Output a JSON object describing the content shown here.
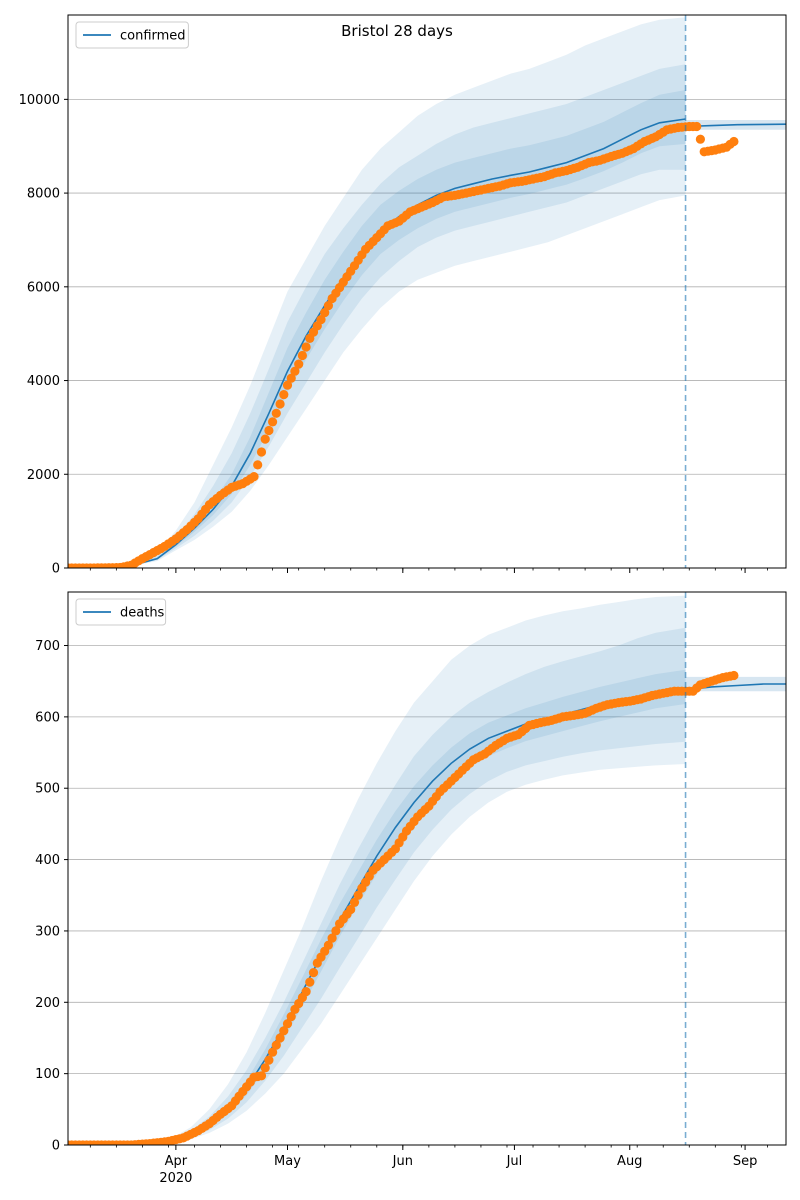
{
  "figure": {
    "title": "Bristol 28 days",
    "xaxis": {
      "type": "date",
      "range": [
        "2020-03-03",
        "2020-09-12"
      ],
      "major_ticks": [
        {
          "date": "2020-04-01",
          "label": "Apr",
          "sublabel": "2020"
        },
        {
          "date": "2020-05-01",
          "label": "May",
          "sublabel": ""
        },
        {
          "date": "2020-06-01",
          "label": "Jun",
          "sublabel": ""
        },
        {
          "date": "2020-07-01",
          "label": "Jul",
          "sublabel": ""
        },
        {
          "date": "2020-08-01",
          "label": "Aug",
          "sublabel": ""
        },
        {
          "date": "2020-09-01",
          "label": "Sep",
          "sublabel": ""
        }
      ],
      "minor_tick_interval": "weekly",
      "forecast_start": "2020-08-16"
    },
    "colors": {
      "model_line": "#1f77b4",
      "observed_points": "#ff7f0e",
      "bands": "#1f77b4",
      "grid": "#b0b0b0",
      "forecast_line": "#1f77b4"
    }
  },
  "chart_data": [
    {
      "type": "line",
      "legend": {
        "label": "confirmed",
        "position": "top-left"
      },
      "ylim": [
        0,
        11800
      ],
      "yticks": [
        0,
        2000,
        4000,
        6000,
        8000,
        10000
      ],
      "grid": "y",
      "model_median": {
        "x": [
          "2020-03-03",
          "2020-03-20",
          "2020-03-27",
          "2020-04-01",
          "2020-04-06",
          "2020-04-11",
          "2020-04-16",
          "2020-04-21",
          "2020-04-26",
          "2020-05-01",
          "2020-05-06",
          "2020-05-11",
          "2020-05-16",
          "2020-05-21",
          "2020-05-26",
          "2020-05-31",
          "2020-06-05",
          "2020-06-10",
          "2020-06-15",
          "2020-06-20",
          "2020-06-25",
          "2020-06-30",
          "2020-07-05",
          "2020-07-10",
          "2020-07-15",
          "2020-07-20",
          "2020-07-25",
          "2020-07-30",
          "2020-08-04",
          "2020-08-09",
          "2020-08-16"
        ],
        "y": [
          0,
          50,
          200,
          500,
          850,
          1250,
          1750,
          2450,
          3300,
          4200,
          4950,
          5600,
          6200,
          6750,
          7200,
          7500,
          7750,
          7950,
          8100,
          8200,
          8300,
          8380,
          8450,
          8550,
          8650,
          8800,
          8950,
          9150,
          9350,
          9500,
          9580
        ]
      },
      "model_future": {
        "x": [
          "2020-08-16",
          "2020-08-23",
          "2020-08-30",
          "2020-09-06",
          "2020-09-12"
        ],
        "y": [
          9420,
          9440,
          9460,
          9465,
          9470
        ],
        "band": [
          9350,
          9560
        ]
      },
      "bands": [
        {
          "name": "95%",
          "lower": [
            0,
            40,
            150,
            380,
            600,
            880,
            1200,
            1650,
            2200,
            2800,
            3400,
            4000,
            4600,
            5100,
            5550,
            5900,
            6150,
            6300,
            6450,
            6550,
            6650,
            6750,
            6850,
            6950,
            7100,
            7250,
            7400,
            7550,
            7700,
            7850,
            7950
          ],
          "upper": [
            0,
            80,
            330,
            800,
            1400,
            2200,
            3000,
            3900,
            4900,
            5900,
            6600,
            7300,
            7900,
            8500,
            8950,
            9300,
            9650,
            9900,
            10100,
            10250,
            10400,
            10550,
            10650,
            10800,
            10950,
            11150,
            11300,
            11450,
            11600,
            11700,
            11750
          ]
        },
        {
          "name": "80%",
          "lower": [
            0,
            45,
            170,
            420,
            690,
            1010,
            1400,
            1950,
            2600,
            3300,
            3950,
            4600,
            5200,
            5750,
            6200,
            6550,
            6850,
            7050,
            7200,
            7300,
            7400,
            7500,
            7600,
            7700,
            7800,
            7950,
            8100,
            8250,
            8400,
            8500,
            8500
          ],
          "upper": [
            0,
            70,
            270,
            650,
            1150,
            1750,
            2450,
            3300,
            4250,
            5250,
            6000,
            6700,
            7250,
            7750,
            8200,
            8550,
            8800,
            9050,
            9250,
            9400,
            9500,
            9600,
            9700,
            9800,
            9900,
            10050,
            10200,
            10350,
            10500,
            10650,
            10750
          ]
        },
        {
          "name": "50%",
          "lower": [
            0,
            48,
            185,
            460,
            770,
            1130,
            1580,
            2200,
            2950,
            3750,
            4450,
            5100,
            5700,
            6250,
            6700,
            7000,
            7250,
            7450,
            7600,
            7700,
            7800,
            7900,
            7980,
            8080,
            8180,
            8320,
            8470,
            8650,
            8850,
            9000,
            9050
          ],
          "upper": [
            0,
            58,
            230,
            560,
            960,
            1420,
            2000,
            2800,
            3750,
            4700,
            5450,
            6150,
            6750,
            7300,
            7750,
            8050,
            8300,
            8500,
            8650,
            8750,
            8850,
            8950,
            9020,
            9120,
            9220,
            9370,
            9520,
            9720,
            9920,
            10100,
            10200
          ]
        }
      ],
      "observed": {
        "x": [
          "2020-03-03",
          "2020-03-10",
          "2020-03-17",
          "2020-03-20",
          "2020-03-23",
          "2020-03-26",
          "2020-03-29",
          "2020-04-01",
          "2020-04-04",
          "2020-04-07",
          "2020-04-10",
          "2020-04-13",
          "2020-04-16",
          "2020-04-19",
          "2020-04-22",
          "2020-04-23",
          "2020-04-25",
          "2020-04-28",
          "2020-05-01",
          "2020-05-04",
          "2020-05-07",
          "2020-05-10",
          "2020-05-13",
          "2020-05-16",
          "2020-05-19",
          "2020-05-22",
          "2020-05-25",
          "2020-05-28",
          "2020-05-31",
          "2020-06-03",
          "2020-06-06",
          "2020-06-09",
          "2020-06-12",
          "2020-06-15",
          "2020-06-18",
          "2020-06-21",
          "2020-06-24",
          "2020-06-27",
          "2020-06-30",
          "2020-07-03",
          "2020-07-06",
          "2020-07-09",
          "2020-07-12",
          "2020-07-15",
          "2020-07-18",
          "2020-07-21",
          "2020-07-24",
          "2020-07-27",
          "2020-07-30",
          "2020-08-02",
          "2020-08-05",
          "2020-08-08",
          "2020-08-11",
          "2020-08-14",
          "2020-08-17",
          "2020-08-19",
          "2020-08-21",
          "2020-08-24",
          "2020-08-27",
          "2020-08-29"
        ],
        "y": [
          0,
          0,
          10,
          60,
          200,
          330,
          460,
          620,
          820,
          1050,
          1350,
          1550,
          1720,
          1800,
          1950,
          2200,
          2750,
          3300,
          3900,
          4350,
          4900,
          5300,
          5750,
          6100,
          6450,
          6800,
          7050,
          7300,
          7400,
          7600,
          7700,
          7800,
          7920,
          7950,
          8000,
          8050,
          8100,
          8150,
          8220,
          8250,
          8300,
          8350,
          8430,
          8480,
          8550,
          8650,
          8700,
          8780,
          8850,
          8950,
          9100,
          9200,
          9350,
          9400,
          9420,
          9420,
          8880,
          8920,
          8980,
          9100
        ]
      }
    },
    {
      "type": "line",
      "legend": {
        "label": "deaths",
        "position": "top-left"
      },
      "ylim": [
        0,
        775
      ],
      "yticks": [
        0,
        100,
        200,
        300,
        400,
        500,
        600,
        700
      ],
      "grid": "y",
      "model_median": {
        "x": [
          "2020-03-03",
          "2020-03-25",
          "2020-03-31",
          "2020-04-05",
          "2020-04-10",
          "2020-04-15",
          "2020-04-20",
          "2020-04-25",
          "2020-04-30",
          "2020-05-05",
          "2020-05-10",
          "2020-05-15",
          "2020-05-20",
          "2020-05-25",
          "2020-05-30",
          "2020-06-04",
          "2020-06-09",
          "2020-06-14",
          "2020-06-19",
          "2020-06-24",
          "2020-06-29",
          "2020-07-04",
          "2020-07-09",
          "2020-07-14",
          "2020-07-19",
          "2020-07-24",
          "2020-07-29",
          "2020-08-03",
          "2020-08-08",
          "2020-08-16"
        ],
        "y": [
          0,
          2,
          6,
          15,
          30,
          50,
          80,
          120,
          165,
          215,
          265,
          315,
          360,
          405,
          445,
          480,
          510,
          535,
          555,
          570,
          580,
          590,
          597,
          603,
          610,
          617,
          623,
          628,
          633,
          638
        ]
      },
      "model_future": {
        "x": [
          "2020-08-16",
          "2020-08-23",
          "2020-08-30",
          "2020-09-06",
          "2020-09-12"
        ],
        "y": [
          638,
          642,
          644,
          646,
          646
        ],
        "band": [
          636,
          656
        ]
      },
      "bands": [
        {
          "name": "95%",
          "lower": [
            0,
            1,
            3,
            8,
            17,
            30,
            48,
            72,
            100,
            135,
            170,
            210,
            250,
            290,
            330,
            370,
            405,
            435,
            460,
            480,
            495,
            505,
            512,
            518,
            522,
            526,
            528,
            530,
            532,
            534
          ],
          "upper": [
            0,
            3,
            10,
            25,
            50,
            85,
            130,
            185,
            245,
            305,
            370,
            430,
            485,
            535,
            580,
            620,
            650,
            680,
            700,
            715,
            725,
            735,
            742,
            748,
            752,
            757,
            761,
            765,
            768,
            770
          ]
        },
        {
          "name": "80%",
          "lower": [
            0,
            1,
            4,
            10,
            21,
            37,
            60,
            90,
            125,
            165,
            205,
            248,
            290,
            333,
            372,
            410,
            442,
            470,
            492,
            510,
            523,
            532,
            538,
            544,
            549,
            553,
            556,
            559,
            562,
            565
          ],
          "upper": [
            0,
            2,
            8,
            20,
            40,
            68,
            105,
            150,
            200,
            255,
            310,
            365,
            415,
            462,
            505,
            545,
            575,
            600,
            620,
            635,
            648,
            660,
            670,
            678,
            685,
            692,
            700,
            710,
            718,
            725
          ]
        },
        {
          "name": "50%",
          "lower": [
            0,
            1,
            5,
            12,
            25,
            43,
            70,
            106,
            148,
            195,
            243,
            292,
            337,
            380,
            420,
            455,
            485,
            510,
            530,
            545,
            556,
            566,
            573,
            580,
            587,
            594,
            600,
            606,
            612,
            618
          ],
          "upper": [
            0,
            2,
            7,
            17,
            35,
            58,
            90,
            134,
            183,
            235,
            288,
            338,
            383,
            428,
            468,
            503,
            532,
            557,
            577,
            592,
            602,
            612,
            620,
            628,
            635,
            642,
            648,
            654,
            660,
            666
          ]
        }
      ],
      "observed": {
        "x": [
          "2020-03-03",
          "2020-03-20",
          "2020-03-25",
          "2020-03-30",
          "2020-04-03",
          "2020-04-07",
          "2020-04-10",
          "2020-04-13",
          "2020-04-16",
          "2020-04-19",
          "2020-04-22",
          "2020-04-24",
          "2020-04-27",
          "2020-04-30",
          "2020-05-03",
          "2020-05-06",
          "2020-05-09",
          "2020-05-12",
          "2020-05-15",
          "2020-05-18",
          "2020-05-21",
          "2020-05-24",
          "2020-05-27",
          "2020-05-30",
          "2020-06-02",
          "2020-06-05",
          "2020-06-08",
          "2020-06-11",
          "2020-06-14",
          "2020-06-17",
          "2020-06-20",
          "2020-06-23",
          "2020-06-26",
          "2020-06-29",
          "2020-07-02",
          "2020-07-05",
          "2020-07-08",
          "2020-07-11",
          "2020-07-14",
          "2020-07-17",
          "2020-07-20",
          "2020-07-23",
          "2020-07-26",
          "2020-07-29",
          "2020-08-01",
          "2020-08-04",
          "2020-08-07",
          "2020-08-10",
          "2020-08-13",
          "2020-08-16",
          "2020-08-18",
          "2020-08-20",
          "2020-08-23",
          "2020-08-26",
          "2020-08-29"
        ],
        "y": [
          0,
          0,
          2,
          5,
          10,
          20,
          30,
          43,
          55,
          75,
          95,
          97,
          130,
          160,
          190,
          215,
          255,
          280,
          310,
          330,
          360,
          385,
          400,
          415,
          440,
          460,
          475,
          495,
          510,
          525,
          540,
          548,
          560,
          570,
          575,
          588,
          592,
          595,
          600,
          602,
          605,
          612,
          617,
          620,
          622,
          625,
          630,
          633,
          636,
          636,
          636,
          645,
          650,
          655,
          658
        ]
      }
    }
  ]
}
